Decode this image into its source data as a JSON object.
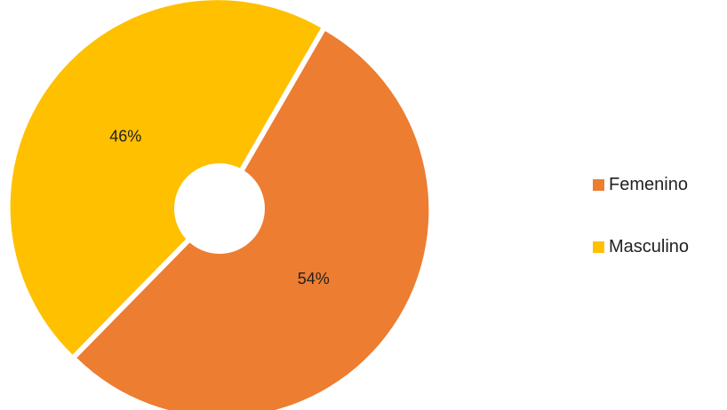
{
  "chart_data": {
    "type": "pie",
    "categories": [
      "Femenino",
      "Masculino"
    ],
    "values": [
      54,
      46
    ],
    "labels": [
      "54%",
      "46%"
    ],
    "colors": [
      "#ED7D31",
      "#FFC000"
    ],
    "donut": true,
    "legend_position": "right"
  },
  "legend": {
    "items": [
      {
        "label": "Femenino",
        "color": "#ED7D31"
      },
      {
        "label": "Masculino",
        "color": "#FFC000"
      }
    ]
  }
}
